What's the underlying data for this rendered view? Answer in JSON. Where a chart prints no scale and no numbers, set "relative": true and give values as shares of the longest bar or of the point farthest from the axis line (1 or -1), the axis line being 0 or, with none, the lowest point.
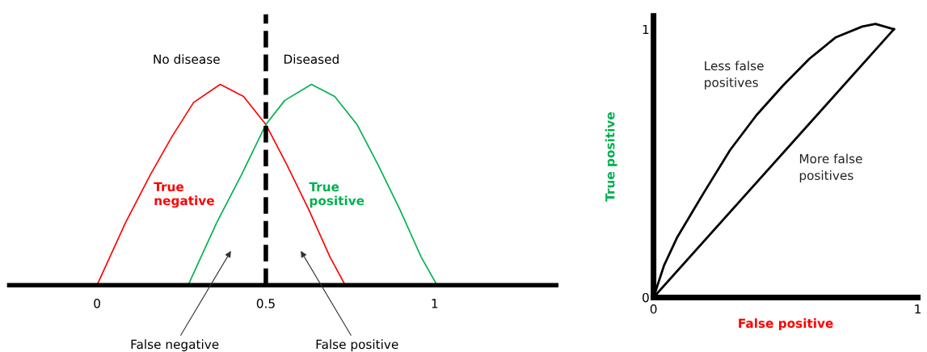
{
  "chart_data": [
    {
      "type": "line",
      "relative": true,
      "xlim": [
        -0.26,
        1.36
      ],
      "xticks": [
        0,
        0.5,
        1
      ],
      "tick_labels": "x",
      "grid": false,
      "legend": false,
      "series": [
        {
          "name": "No disease",
          "color": "#ff0000",
          "x": [
            0,
            0.084,
            0.158,
            0.222,
            0.286,
            0.365,
            0.434,
            0.5,
            0.562,
            0.626,
            0.69,
            0.735
          ],
          "values": [
            0,
            0.31,
            0.55,
            0.74,
            0.91,
            1.0,
            0.94,
            0.8,
            0.6,
            0.38,
            0.14,
            0
          ]
        },
        {
          "name": "Diseased",
          "color": "#00b050",
          "x": [
            0.27,
            0.354,
            0.428,
            0.5,
            0.556,
            0.635,
            0.704,
            0.77,
            0.832,
            0.896,
            0.96,
            1.007
          ],
          "values": [
            0,
            0.31,
            0.55,
            0.8,
            0.92,
            1.0,
            0.94,
            0.8,
            0.6,
            0.38,
            0.14,
            0
          ]
        }
      ],
      "ref_lines": [
        {
          "axis": "x",
          "value": 0.5,
          "label": null,
          "color": "#000000",
          "line_style": "dashed"
        }
      ],
      "annotations": [
        "True negative",
        "True positive",
        "False negative",
        "False positive"
      ]
    },
    {
      "type": "line",
      "xlim": [
        0,
        1
      ],
      "ylim": [
        0,
        1.05
      ],
      "xticks": [
        0,
        1
      ],
      "yticks": [
        0,
        1
      ],
      "grid": false,
      "legend": false,
      "xlabel": "False positive",
      "ylabel": "True positive",
      "series": [
        {
          "color": "#000000",
          "x": [
            0,
            0.04,
            0.09,
            0.19,
            0.29,
            0.39,
            0.49,
            0.59,
            0.69,
            0.79,
            0.84,
            0.91
          ],
          "values": [
            0,
            0.12,
            0.225,
            0.39,
            0.55,
            0.68,
            0.79,
            0.89,
            0.97,
            1.01,
            1.02,
            1.0
          ]
        },
        {
          "color": "#000000",
          "x": [
            0,
            0.91
          ],
          "values": [
            0,
            1.0
          ]
        }
      ],
      "annotations": [
        "Less false\npositives",
        "More false\npositives"
      ]
    }
  ]
}
